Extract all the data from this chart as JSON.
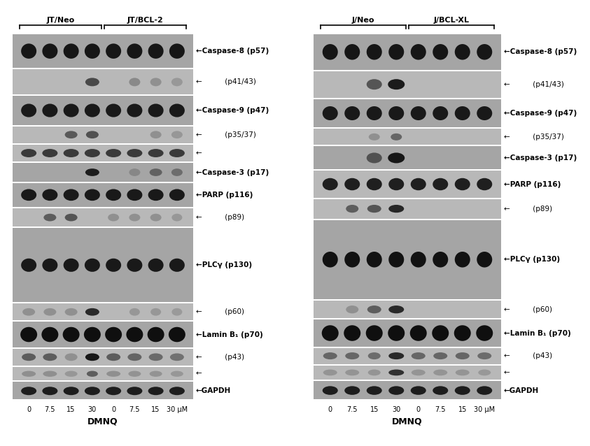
{
  "fig_width": 8.43,
  "fig_height": 6.38,
  "bg_color": "#ffffff",
  "left_panel": {
    "label1": "JT/Neo",
    "label2": "JT/BCL-2",
    "x_labels": [
      "0",
      "7.5",
      "15",
      "30",
      "0",
      "7.5",
      "15",
      "30 μM"
    ],
    "x_label_text": "DMNQ"
  },
  "right_panel": {
    "label1": "J/Neo",
    "label2": "J/BCL-XL",
    "x_labels": [
      "0",
      "7.5",
      "15",
      "30",
      "0",
      "7.5",
      "15",
      "30 μM"
    ],
    "x_label_text": "DMNQ"
  },
  "left_labels": [
    [
      "←Caspase-8 (p57)",
      true,
      0
    ],
    [
      "←     (p41/43)",
      false,
      1
    ],
    [
      "←Caspase-9 (p47)",
      true,
      2
    ],
    [
      "←     (p35/37)",
      false,
      3
    ],
    [
      "←Caspase-3 (p17)",
      true,
      4
    ],
    [
      "←PARP (p116)",
      true,
      5
    ],
    [
      "←     (p89)",
      false,
      6
    ],
    [
      "←PLCγ (p130)",
      true,
      7
    ],
    [
      "←     (p60)",
      false,
      8
    ],
    [
      "←Lamin B₁ (p70)",
      true,
      9
    ],
    [
      "←     (p43)",
      false,
      10
    ],
    [
      "←GAPDH",
      true,
      11
    ]
  ],
  "right_labels": [
    [
      "←Caspase-8 (p57)",
      true,
      0
    ],
    [
      "←     (p41/43)",
      false,
      1
    ],
    [
      "←Caspase-9 (p47)",
      true,
      2
    ],
    [
      "←     (p35/37)",
      false,
      3
    ],
    [
      "←Caspase-3 (p17)",
      true,
      4
    ],
    [
      "←PARP (p116)",
      true,
      5
    ],
    [
      "←     (p89)",
      false,
      6
    ],
    [
      "←PLCγ (p130)",
      true,
      7
    ],
    [
      "←     (p60)",
      false,
      8
    ],
    [
      "←Lamin B₁ (p70)",
      true,
      9
    ],
    [
      "←     (p43)",
      false,
      10
    ],
    [
      "←GAPDH",
      true,
      11
    ]
  ]
}
